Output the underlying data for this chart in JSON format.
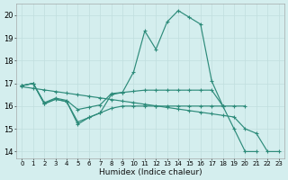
{
  "color": "#2d8b7a",
  "bg_color": "#d4eeee",
  "grid_color": "#c0dede",
  "xlabel": "Humidex (Indice chaleur)",
  "ylim": [
    13.7,
    20.5
  ],
  "xlim": [
    -0.5,
    23.5
  ],
  "line_main": {
    "x": [
      0,
      1,
      2,
      3,
      4,
      5,
      6,
      7,
      8,
      9,
      10,
      11,
      12,
      13,
      14,
      15,
      16,
      17,
      18,
      19,
      20,
      21
    ],
    "y": [
      16.9,
      17.0,
      16.1,
      16.3,
      16.2,
      15.2,
      15.5,
      15.7,
      16.5,
      16.6,
      17.5,
      19.3,
      18.5,
      19.7,
      20.2,
      19.9,
      19.6,
      17.1,
      16.0,
      15.0,
      14.0,
      14.0
    ]
  },
  "line_flat_high": {
    "x": [
      0,
      1,
      2,
      3,
      4,
      5,
      6,
      7,
      8,
      9,
      10,
      11,
      12,
      13,
      14,
      15,
      16,
      17,
      18,
      19,
      20
    ],
    "y": [
      16.9,
      17.0,
      16.15,
      16.35,
      16.25,
      15.85,
      15.95,
      16.05,
      16.55,
      16.6,
      16.65,
      16.7,
      16.7,
      16.7,
      16.7,
      16.7,
      16.7,
      16.7,
      16.0,
      null,
      null
    ]
  },
  "line_flat_mid": {
    "x": [
      0,
      1,
      2,
      3,
      4,
      5,
      6,
      7,
      8,
      9,
      10,
      11,
      12,
      13,
      14,
      15,
      16,
      17,
      18,
      19,
      20
    ],
    "y": [
      16.9,
      17.0,
      16.1,
      16.3,
      16.2,
      15.3,
      15.5,
      15.7,
      15.9,
      16.0,
      16.0,
      16.0,
      16.0,
      16.0,
      16.0,
      16.0,
      16.0,
      16.0,
      16.0,
      16.0,
      16.0
    ]
  },
  "line_diagonal": {
    "x": [
      0,
      1,
      2,
      3,
      4,
      5,
      6,
      7,
      8,
      9,
      10,
      11,
      12,
      13,
      14,
      15,
      16,
      17,
      18,
      19,
      20,
      21,
      22,
      23
    ],
    "y": [
      16.85,
      16.78,
      16.71,
      16.64,
      16.57,
      16.5,
      16.43,
      16.36,
      16.29,
      16.22,
      16.15,
      16.08,
      16.01,
      15.94,
      15.87,
      15.8,
      15.73,
      15.66,
      15.59,
      15.52,
      15.0,
      14.8,
      14.0,
      14.0
    ]
  }
}
